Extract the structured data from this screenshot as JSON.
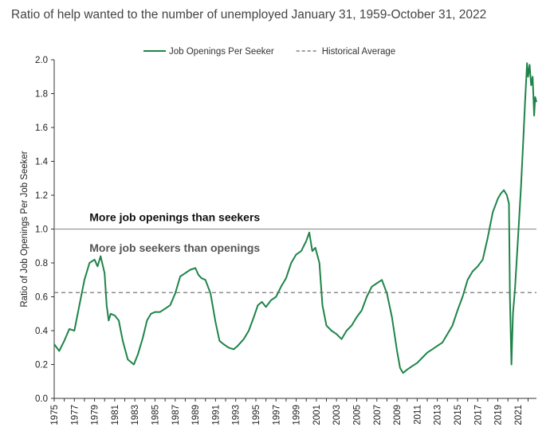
{
  "title": "Ratio of help wanted to the number of unemployed January 31, 1959-October 31, 2022",
  "chart_data": {
    "type": "line",
    "title": "Ratio of help wanted to the number of unemployed January 31, 1959-October 31, 2022",
    "xlabel": "",
    "ylabel": "Ratio of Job Openings Per Job Seeker",
    "xlim": [
      1975,
      2022.83
    ],
    "ylim": [
      0,
      2.0
    ],
    "y_ticks": [
      0.0,
      0.2,
      0.4,
      0.6,
      0.8,
      1.0,
      1.2,
      1.4,
      1.6,
      1.8,
      2.0
    ],
    "y_tick_labels": [
      "0.0",
      "0.2",
      "0.4",
      "0.6",
      "0.8",
      "1.0",
      "1.2",
      "1.4",
      "1.6",
      "1.8",
      "2.0"
    ],
    "x_ticks": [
      1975,
      1977,
      1979,
      1981,
      1983,
      1985,
      1987,
      1989,
      1991,
      1993,
      1995,
      1997,
      1999,
      2001,
      2003,
      2005,
      2007,
      2009,
      2011,
      2013,
      2015,
      2017,
      2019,
      2021
    ],
    "x_tick_labels": [
      "1975",
      "1977",
      "1979",
      "1981",
      "1983",
      "1985",
      "1987",
      "1989",
      "1991",
      "1993",
      "1995",
      "1997",
      "1999",
      "2001",
      "2003",
      "2005",
      "2007",
      "2009",
      "2011",
      "2013",
      "2015",
      "2017",
      "2019",
      "2021"
    ],
    "grid": false,
    "legend_position": "top",
    "series": [
      {
        "name": "Job Openings Per Seeker",
        "color": "#1e8449",
        "style": "solid",
        "x": [
          1975.0,
          1975.5,
          1976.0,
          1976.5,
          1977.0,
          1977.5,
          1978.0,
          1978.5,
          1979.0,
          1979.3,
          1979.6,
          1980.0,
          1980.2,
          1980.4,
          1980.6,
          1981.0,
          1981.4,
          1981.8,
          1982.3,
          1982.9,
          1983.3,
          1983.8,
          1984.2,
          1984.6,
          1985.0,
          1985.5,
          1986.0,
          1986.5,
          1987.0,
          1987.5,
          1988.0,
          1988.5,
          1989.0,
          1989.3,
          1989.6,
          1990.0,
          1990.5,
          1991.0,
          1991.4,
          1991.8,
          1992.3,
          1992.8,
          1993.2,
          1993.8,
          1994.3,
          1994.8,
          1995.2,
          1995.6,
          1996.0,
          1996.5,
          1997.0,
          1997.5,
          1998.0,
          1998.5,
          1999.0,
          1999.5,
          2000.0,
          2000.3,
          2000.6,
          2000.9,
          2001.3,
          2001.6,
          2002.0,
          2002.5,
          2003.0,
          2003.5,
          2004.0,
          2004.5,
          2005.0,
          2005.5,
          2006.0,
          2006.5,
          2007.0,
          2007.5,
          2008.0,
          2008.5,
          2009.0,
          2009.3,
          2009.6,
          2010.0,
          2010.5,
          2011.0,
          2011.5,
          2012.0,
          2012.5,
          2013.0,
          2013.5,
          2014.0,
          2014.5,
          2015.0,
          2015.5,
          2016.0,
          2016.5,
          2017.0,
          2017.5,
          2018.0,
          2018.5,
          2019.0,
          2019.3,
          2019.6,
          2019.9,
          2020.1,
          2020.2,
          2020.35,
          2020.5,
          2020.7,
          2021.0,
          2021.3,
          2021.5,
          2021.7,
          2021.9,
          2022.0,
          2022.15,
          2022.3,
          2022.45,
          2022.6,
          2022.7,
          2022.83
        ],
        "values": [
          0.32,
          0.28,
          0.34,
          0.41,
          0.4,
          0.55,
          0.7,
          0.8,
          0.82,
          0.78,
          0.84,
          0.74,
          0.55,
          0.46,
          0.5,
          0.49,
          0.46,
          0.34,
          0.23,
          0.2,
          0.26,
          0.36,
          0.46,
          0.5,
          0.51,
          0.51,
          0.53,
          0.55,
          0.62,
          0.72,
          0.74,
          0.76,
          0.77,
          0.73,
          0.71,
          0.7,
          0.62,
          0.45,
          0.34,
          0.32,
          0.3,
          0.29,
          0.31,
          0.35,
          0.4,
          0.48,
          0.55,
          0.57,
          0.54,
          0.58,
          0.6,
          0.66,
          0.71,
          0.8,
          0.85,
          0.87,
          0.93,
          0.98,
          0.87,
          0.89,
          0.8,
          0.55,
          0.43,
          0.4,
          0.38,
          0.35,
          0.4,
          0.43,
          0.48,
          0.52,
          0.6,
          0.66,
          0.68,
          0.7,
          0.62,
          0.48,
          0.28,
          0.18,
          0.15,
          0.17,
          0.19,
          0.21,
          0.24,
          0.27,
          0.29,
          0.31,
          0.33,
          0.38,
          0.43,
          0.52,
          0.6,
          0.7,
          0.75,
          0.78,
          0.82,
          0.95,
          1.1,
          1.18,
          1.21,
          1.23,
          1.2,
          1.15,
          0.6,
          0.2,
          0.5,
          0.65,
          0.95,
          1.25,
          1.5,
          1.75,
          1.98,
          1.9,
          1.97,
          1.85,
          1.9,
          1.67,
          1.78,
          1.75
        ]
      },
      {
        "name": "Historical Average",
        "color": "#666666",
        "style": "dashed",
        "value": 0.625
      }
    ],
    "reference_lines": [
      {
        "value": 1.0,
        "color": "#999999"
      }
    ],
    "annotations": [
      {
        "text": "More job openings than seekers",
        "x": 1978.5,
        "y": 1.07,
        "color": "#111111"
      },
      {
        "text": "More job seekers than openings",
        "x": 1978.5,
        "y": 0.89,
        "color": "#555555"
      }
    ]
  }
}
